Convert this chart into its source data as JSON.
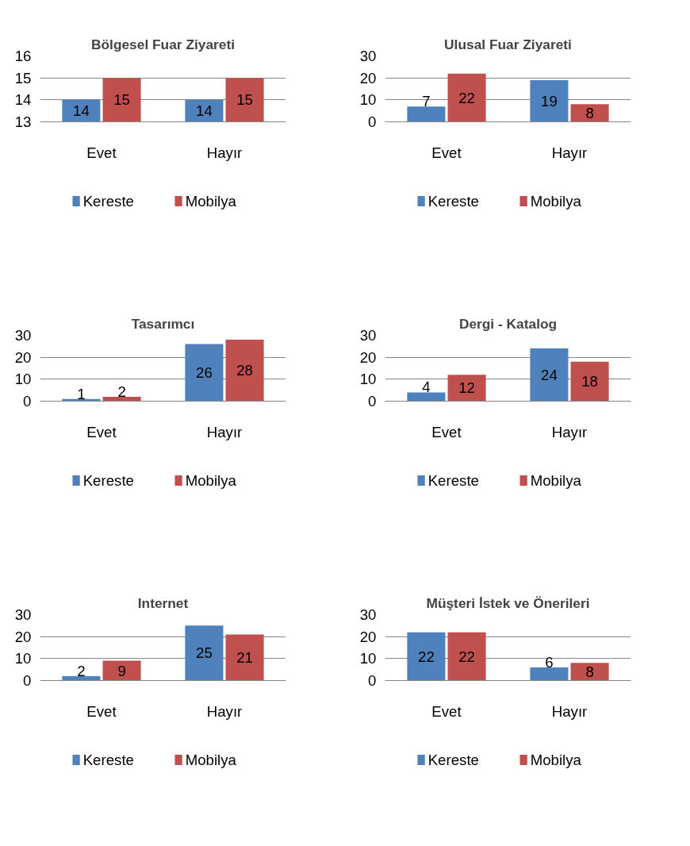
{
  "chart_data": [
    {
      "type": "bar",
      "title": "Bölgesel Fuar Ziyareti",
      "categories": [
        "Evet",
        "Hayır"
      ],
      "series": [
        {
          "name": "Kereste",
          "color": "#4f81bd",
          "values": [
            14,
            14
          ]
        },
        {
          "name": "Mobilya",
          "color": "#c0504d",
          "values": [
            15,
            15
          ]
        }
      ],
      "ylim": [
        13,
        16
      ],
      "yticks": [
        13,
        14,
        15,
        16
      ],
      "grid": "y",
      "legend": "bottom",
      "data_labels": true
    },
    {
      "type": "bar",
      "title": "Ulusal Fuar Ziyareti",
      "categories": [
        "Evet",
        "Hayır"
      ],
      "series": [
        {
          "name": "Kereste",
          "color": "#4f81bd",
          "values": [
            7,
            19
          ]
        },
        {
          "name": "Mobilya",
          "color": "#c0504d",
          "values": [
            22,
            8
          ]
        }
      ],
      "ylim": [
        0,
        30
      ],
      "yticks": [
        0,
        10,
        20,
        30
      ],
      "grid": "y",
      "legend": "bottom",
      "data_labels": true
    },
    {
      "type": "bar",
      "title": "Tasarımcı",
      "categories": [
        "Evet",
        "Hayır"
      ],
      "series": [
        {
          "name": "Kereste",
          "color": "#4f81bd",
          "values": [
            1,
            26
          ]
        },
        {
          "name": "Mobilya",
          "color": "#c0504d",
          "values": [
            2,
            28
          ]
        }
      ],
      "ylim": [
        0,
        30
      ],
      "yticks": [
        0,
        10,
        20,
        30
      ],
      "grid": "y",
      "legend": "bottom",
      "data_labels": true
    },
    {
      "type": "bar",
      "title": "Dergi - Katalog",
      "categories": [
        "Evet",
        "Hayır"
      ],
      "series": [
        {
          "name": "Kereste",
          "color": "#4f81bd",
          "values": [
            4,
            24
          ]
        },
        {
          "name": "Mobilya",
          "color": "#c0504d",
          "values": [
            12,
            18
          ]
        }
      ],
      "ylim": [
        0,
        30
      ],
      "yticks": [
        0,
        10,
        20,
        30
      ],
      "grid": "y",
      "legend": "bottom",
      "data_labels": true
    },
    {
      "type": "bar",
      "title": "Internet",
      "categories": [
        "Evet",
        "Hayır"
      ],
      "series": [
        {
          "name": "Kereste",
          "color": "#4f81bd",
          "values": [
            2,
            25
          ]
        },
        {
          "name": "Mobilya",
          "color": "#c0504d",
          "values": [
            9,
            21
          ]
        }
      ],
      "ylim": [
        0,
        30
      ],
      "yticks": [
        0,
        10,
        20,
        30
      ],
      "grid": "y",
      "legend": "bottom",
      "data_labels": true
    },
    {
      "type": "bar",
      "title": "Müşteri İstek ve Önerileri",
      "categories": [
        "Evet",
        "Hayır"
      ],
      "series": [
        {
          "name": "Kereste",
          "color": "#4f81bd",
          "values": [
            22,
            6
          ]
        },
        {
          "name": "Mobilya",
          "color": "#c0504d",
          "values": [
            22,
            8
          ]
        }
      ],
      "ylim": [
        0,
        30
      ],
      "yticks": [
        0,
        10,
        20,
        30
      ],
      "grid": "y",
      "legend": "bottom",
      "data_labels": true
    }
  ]
}
